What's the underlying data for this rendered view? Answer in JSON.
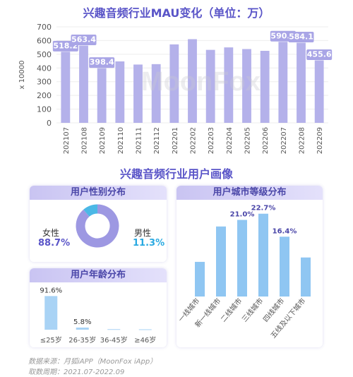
{
  "watermark": "MoonFox",
  "chart_data": [
    {
      "type": "bar",
      "title": "兴趣音频行业MAU变化（单位：万）",
      "ylabel": "x 10000",
      "ylim": [
        0,
        700
      ],
      "yticks": [
        0,
        100,
        200,
        300,
        400,
        500,
        600,
        700
      ],
      "categories": [
        "202107",
        "202108",
        "202109",
        "202110",
        "202111",
        "202112",
        "202201",
        "202202",
        "202203",
        "202204",
        "202205",
        "202206",
        "202207",
        "202208",
        "202209"
      ],
      "values": [
        518.2,
        563.4,
        398.4,
        448,
        425,
        428,
        572,
        610,
        532,
        550,
        538,
        525,
        590.5,
        584.1,
        455.6
      ],
      "data_labels": {
        "0": "518.2",
        "1": "563.4",
        "2": "398.4",
        "12": "590.5",
        "13": "584.1",
        "14": "455.6"
      },
      "color": "#b4b1ea"
    },
    {
      "type": "pie",
      "title": "用户性别分布",
      "slices": [
        {
          "label": "女性",
          "value": 88.7,
          "text": "88.7%",
          "color": "#9d98e2"
        },
        {
          "label": "男性",
          "value": 11.3,
          "text": "11.3%",
          "color": "#4bb8e6"
        }
      ]
    },
    {
      "type": "bar",
      "title": "用户年龄分布",
      "categories": [
        "≤25岁",
        "26-35岁",
        "36-45岁",
        "≥46岁"
      ],
      "values": [
        91.6,
        5.8,
        1.5,
        1.1
      ],
      "data_labels": {
        "0": "91.6%",
        "1": "5.8%"
      },
      "color": "#a9d3f5"
    },
    {
      "type": "bar",
      "title": "用户城市等级分布",
      "categories": [
        "一线城市",
        "新一线城市",
        "二线城市",
        "三线城市",
        "四线城市",
        "五线及以下城市"
      ],
      "values": [
        9.5,
        19.2,
        21.0,
        22.7,
        16.4,
        10.7
      ],
      "data_labels": {
        "2": "21.0%",
        "3": "22.7%",
        "4": "16.4%"
      },
      "color": "#8fc6f2"
    }
  ],
  "section_title": "兴趣音频行业用户画像",
  "footer": {
    "source": "数据来源：月狐iAPP（MoonFox iApp）",
    "period": "取数周期：2021.07-2022.09"
  }
}
